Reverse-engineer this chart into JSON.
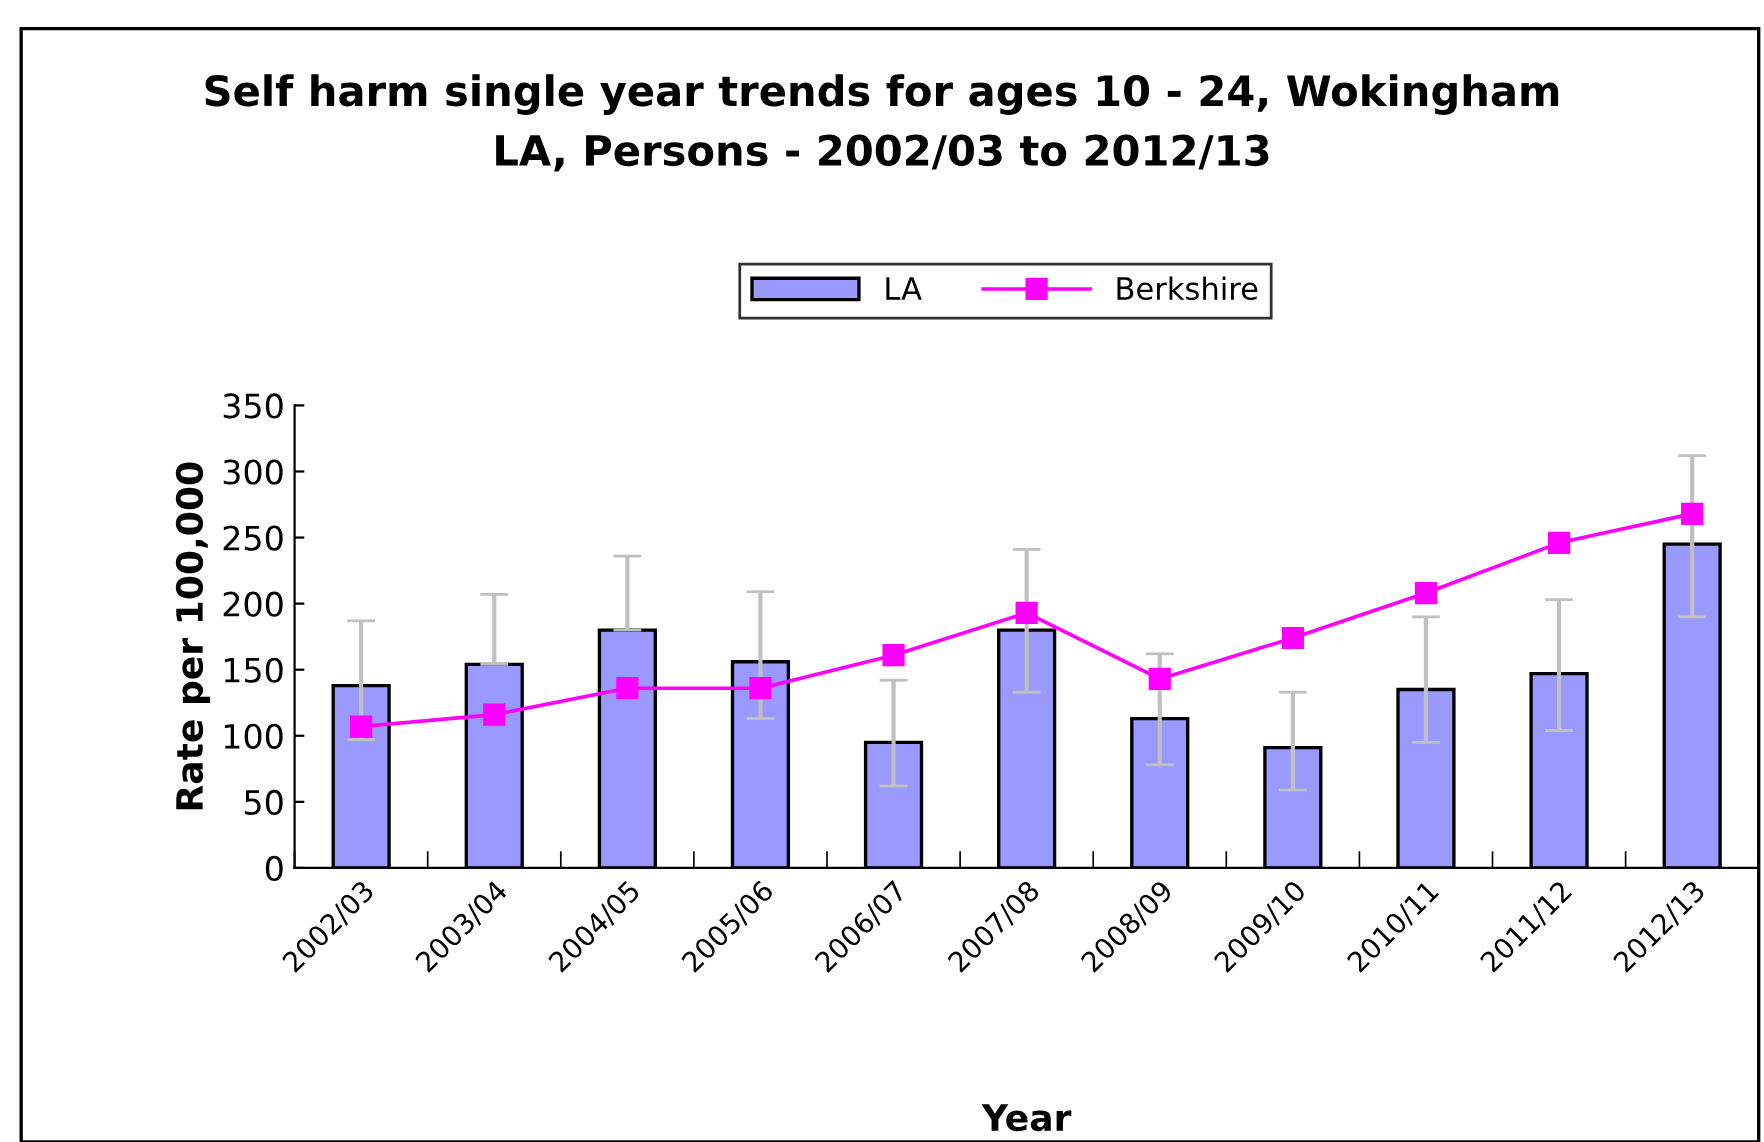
{
  "chart_data": {
    "type": "bar",
    "title": "Self harm single year trends for ages 10 - 24, Wokingham\nLA, Persons - 2002/03 to 2012/13",
    "xlabel": "Year",
    "ylabel": "Rate per 100,000",
    "categories": [
      "2002/03",
      "2003/04",
      "2004/05",
      "2005/06",
      "2006/07",
      "2007/08",
      "2008/09",
      "2009/10",
      "2010/11",
      "2011/12",
      "2012/13"
    ],
    "series": [
      {
        "name": "LA",
        "color": "#9999ff",
        "values": [
          138,
          154,
          180,
          156,
          95,
          180,
          113,
          91,
          135,
          147,
          245
        ],
        "errors": [
          [
            97,
            187
          ],
          [
            154,
            207
          ],
          [
            180,
            236
          ],
          [
            113,
            209
          ],
          [
            62,
            142
          ],
          [
            133,
            241
          ],
          [
            78,
            162
          ],
          [
            59,
            133
          ],
          [
            95,
            190
          ],
          [
            104,
            203
          ],
          [
            190,
            312
          ]
        ]
      },
      {
        "name": "Berkshire",
        "type": "line",
        "color": "#ff00ff",
        "marker": "square",
        "values": [
          107,
          116,
          136,
          136,
          161,
          193,
          143,
          174,
          208,
          246,
          268
        ]
      }
    ],
    "ylim": [
      0,
      350
    ],
    "yticks": [
      0,
      50,
      100,
      150,
      200,
      250,
      300,
      350
    ],
    "grid": false,
    "legend": "top"
  }
}
